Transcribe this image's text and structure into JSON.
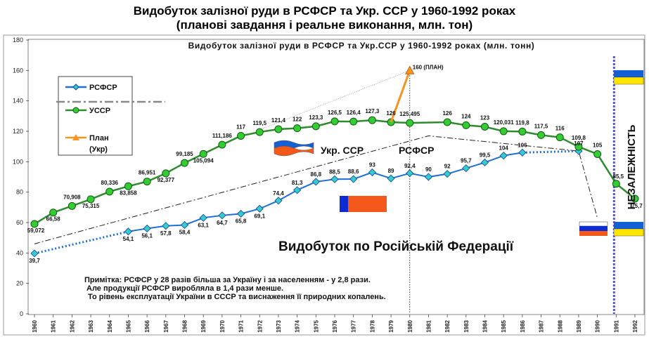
{
  "header": {
    "title_line1": "Видобуток залізної руди в РСФСР та Укр. ССР у 1960-1992 роках",
    "title_line2": "(планові завдання і реальне виконання, млн. тон)"
  },
  "chart_data": {
    "type": "line",
    "title": "Видобуток залізної руди в РСФСР та Укр.ССР у 1960-1992 роках (млн. тонн)",
    "x": [
      1960,
      1961,
      1962,
      1963,
      1964,
      1965,
      1966,
      1967,
      1968,
      1969,
      1970,
      1971,
      1972,
      1973,
      1974,
      1975,
      1976,
      1977,
      1978,
      1979,
      1980,
      1981,
      1982,
      1983,
      1984,
      1985,
      1986,
      1987,
      1988,
      1989,
      1990,
      1991,
      1992
    ],
    "ylim": [
      0,
      180
    ],
    "yticks": [
      0,
      20,
      40,
      60,
      80,
      100,
      120,
      140,
      160,
      180
    ],
    "grid": false,
    "legend_position": "top-left",
    "series": [
      {
        "name": "РСФСР",
        "color": "#1f6fd6",
        "marker": "diamond",
        "marker_color": "#33cccc",
        "points": [
          [
            1960,
            39.7
          ],
          [
            1965,
            54.1
          ],
          [
            1966,
            56.1
          ],
          [
            1967,
            57.8
          ],
          [
            1968,
            58.4
          ],
          [
            1969,
            63.1
          ],
          [
            1970,
            64.7
          ],
          [
            1971,
            65.8
          ],
          [
            1972,
            69.1
          ],
          [
            1973,
            74.4
          ],
          [
            1974,
            81.3
          ],
          [
            1975,
            86.8
          ],
          [
            1976,
            88.5
          ],
          [
            1977,
            88.6
          ],
          [
            1978,
            93
          ],
          [
            1979,
            89
          ],
          [
            1980,
            92.4
          ],
          [
            1981,
            90
          ],
          [
            1982,
            92
          ],
          [
            1983,
            95.7
          ],
          [
            1984,
            99.5
          ],
          [
            1985,
            104
          ],
          [
            1986,
            106
          ],
          [
            1989,
            107
          ]
        ],
        "labels": [
          "39,7",
          "54,1",
          "56,1",
          "57,8",
          "58,4",
          "63,1",
          "64,7",
          "65,8",
          "69,1",
          "74,4",
          "81,3",
          "86,8",
          "88,5",
          "88,6",
          "93",
          "89",
          "92,4",
          "90",
          "92",
          "95,7",
          "99,5",
          "104",
          "106",
          "107"
        ]
      },
      {
        "name": "УССР",
        "color": "#2e8b2e",
        "marker": "circle",
        "marker_color": "#33cc33",
        "points": [
          [
            1960,
            59.072
          ],
          [
            1961,
            66.58
          ],
          [
            1962,
            70.908
          ],
          [
            1963,
            75.315
          ],
          [
            1964,
            80.336
          ],
          [
            1965,
            83.858
          ],
          [
            1966,
            86.951
          ],
          [
            1967,
            92.377
          ],
          [
            1968,
            99.185
          ],
          [
            1969,
            105.094
          ],
          [
            1970,
            111.186
          ],
          [
            1971,
            117
          ],
          [
            1972,
            119.5
          ],
          [
            1973,
            121.4
          ],
          [
            1974,
            122
          ],
          [
            1975,
            123.3
          ],
          [
            1976,
            126.5
          ],
          [
            1977,
            126.4
          ],
          [
            1978,
            127.3
          ],
          [
            1979,
            126
          ],
          [
            1980,
            125.495
          ],
          [
            1982,
            126
          ],
          [
            1983,
            124
          ],
          [
            1984,
            123
          ],
          [
            1985,
            120.031
          ],
          [
            1986,
            119.8
          ],
          [
            1987,
            117.5
          ],
          [
            1988,
            116
          ],
          [
            1989,
            109.8
          ],
          [
            1990,
            105
          ],
          [
            1991,
            85.5
          ],
          [
            1992,
            75.7
          ]
        ],
        "labels": [
          "59,072",
          "66,58",
          "70,908",
          "75,315",
          "80,336",
          "83,858",
          "86,951",
          "92,377",
          "99,185",
          "105,094",
          "111,186",
          "117",
          "119,5",
          "121,4",
          "122",
          "123,3",
          "126,5",
          "126,4",
          "127,3",
          "126",
          "125,495",
          "126",
          "124",
          "123",
          "120,031",
          "119,8",
          "117,5",
          "116",
          "109,8",
          "105",
          "85,5",
          "75,7"
        ]
      },
      {
        "name": "План\n(Укр)",
        "color": "#f7931e",
        "marker": "triangle",
        "points": [
          [
            1979,
            126
          ],
          [
            1980,
            160
          ]
        ],
        "labels": [
          "",
          "160 (ПЛАН)"
        ]
      }
    ],
    "annotations": {
      "ukr_label": "Укр. ССР",
      "rsfsr_label": "РСФСР",
      "russia_label": "Видобуток по Російській Федерації",
      "independence_label": "НЕЗАЛЕЖНІСТЬ",
      "note_line1": "Примітка: РСФСР у 28 разів більша за Україну і за населенням - у 2,8 рази.",
      "note_line2": "Але продукції РСФСР виробляла  в   1,4 рази менше.",
      "note_line3": "То рівень експлуатації  України в СССР та виснаження її природних копалень."
    },
    "colors": {
      "ukraine_blue": "#1560d4",
      "ukraine_yellow": "#ffe600",
      "russia_blue": "#0c2bd1",
      "russia_red": "#f4581b",
      "independence_line": "#5a55c8"
    }
  }
}
